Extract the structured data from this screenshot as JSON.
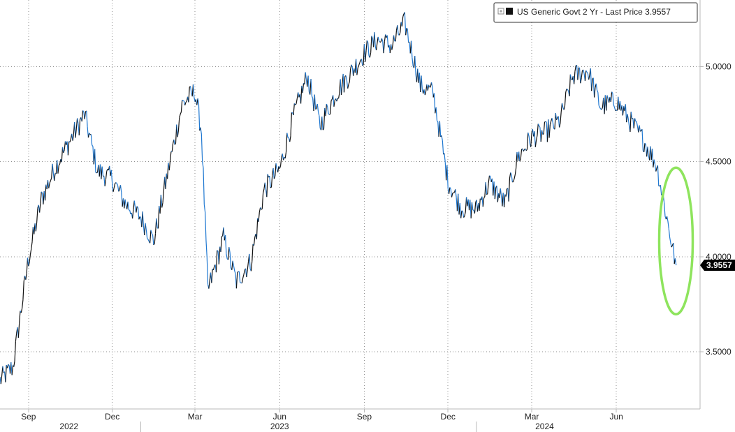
{
  "chart_data": {
    "type": "line",
    "title": "",
    "xlabel": "",
    "ylabel": "",
    "ylim": [
      3.2,
      5.35
    ],
    "grid": true,
    "legend_placement": "top-right",
    "series": [
      {
        "name": "US Generic Govt 2 Yr - Last Price 3.9557",
        "legend_text": "US Generic Govt 2 Yr - Last Price 3.9557",
        "color": "#1f78d1",
        "dark_color": "#111111",
        "x": [
          "2022-08-01",
          "2022-08-15",
          "2022-09-01",
          "2022-09-15",
          "2022-10-01",
          "2022-10-15",
          "2022-11-01",
          "2022-11-15",
          "2022-12-01",
          "2022-12-15",
          "2023-01-01",
          "2023-01-15",
          "2023-02-01",
          "2023-02-15",
          "2023-03-01",
          "2023-03-08",
          "2023-03-15",
          "2023-04-01",
          "2023-04-15",
          "2023-05-01",
          "2023-05-15",
          "2023-06-01",
          "2023-06-15",
          "2023-07-01",
          "2023-07-15",
          "2023-08-01",
          "2023-08-15",
          "2023-09-01",
          "2023-09-15",
          "2023-10-01",
          "2023-10-15",
          "2023-11-01",
          "2023-11-15",
          "2023-12-01",
          "2023-12-15",
          "2024-01-01",
          "2024-01-15",
          "2024-02-01",
          "2024-02-15",
          "2024-03-01",
          "2024-03-15",
          "2024-04-01",
          "2024-04-15",
          "2024-05-01",
          "2024-05-15",
          "2024-06-01",
          "2024-06-15",
          "2024-07-01",
          "2024-07-15",
          "2024-08-01",
          "2024-08-05"
        ],
        "values": [
          3.35,
          3.42,
          3.99,
          4.3,
          4.48,
          4.6,
          4.75,
          4.45,
          4.41,
          4.28,
          4.21,
          4.08,
          4.48,
          4.8,
          4.87,
          4.66,
          3.82,
          4.1,
          3.87,
          3.98,
          4.35,
          4.46,
          4.72,
          4.95,
          4.69,
          4.86,
          4.95,
          5.07,
          5.14,
          5.11,
          5.23,
          4.9,
          4.86,
          4.4,
          4.26,
          4.25,
          4.39,
          4.28,
          4.52,
          4.63,
          4.65,
          4.72,
          4.95,
          4.98,
          4.79,
          4.82,
          4.72,
          4.61,
          4.48,
          4.05,
          3.9557
        ]
      }
    ],
    "y_ticks": [
      {
        "value": 3.5,
        "label": "3.5000"
      },
      {
        "value": 4.0,
        "label": "4.0000"
      },
      {
        "value": 4.5,
        "label": "4.5000"
      },
      {
        "value": 5.0,
        "label": "5.0000"
      }
    ],
    "x_ticks": [
      {
        "date": "2022-09-01",
        "label": "Sep"
      },
      {
        "date": "2022-12-01",
        "label": "Dec"
      },
      {
        "date": "2023-03-01",
        "label": "Mar"
      },
      {
        "date": "2023-06-01",
        "label": "Jun"
      },
      {
        "date": "2023-09-01",
        "label": "Sep"
      },
      {
        "date": "2023-12-01",
        "label": "Dec"
      },
      {
        "date": "2024-03-01",
        "label": "Mar"
      },
      {
        "date": "2024-06-01",
        "label": "Jun"
      }
    ],
    "year_labels": [
      {
        "date": "2022-10-15",
        "label": "2022"
      },
      {
        "date": "2023-06-01",
        "label": "2023"
      },
      {
        "date": "2024-03-15",
        "label": "2024"
      }
    ],
    "year_separators": [
      "2023-01-01",
      "2024-01-01"
    ],
    "last_price": {
      "value": 3.9557,
      "label": "3.9557",
      "color": "#000000"
    },
    "annotation": {
      "type": "ellipse",
      "color": "#8ee45d",
      "center_date": "2024-08-01",
      "center_value": 4.12
    }
  }
}
